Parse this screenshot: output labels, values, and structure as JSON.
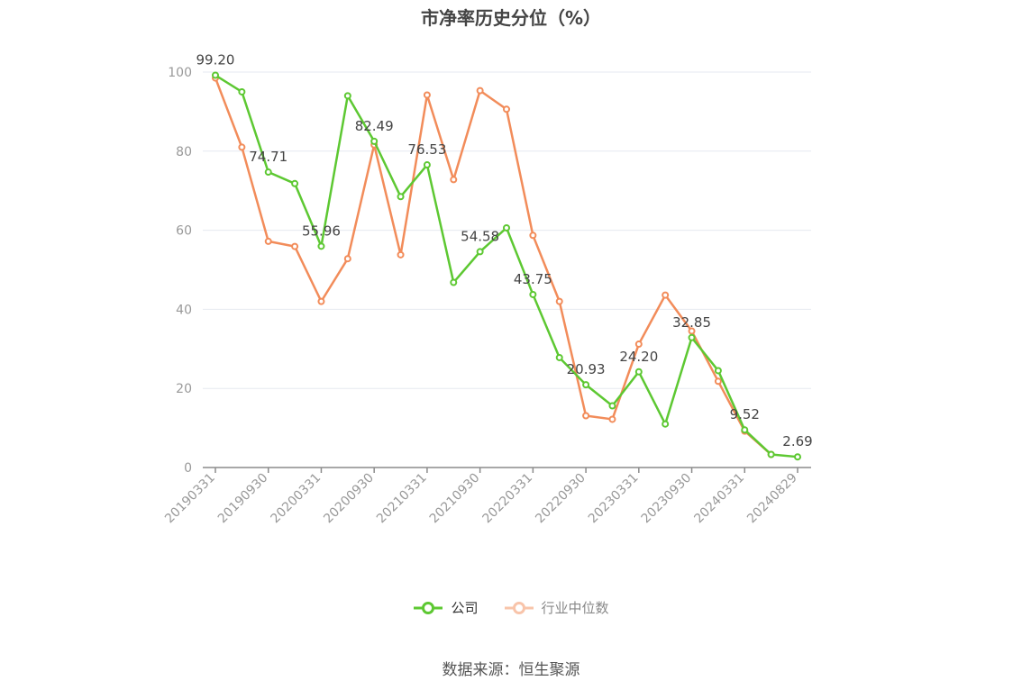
{
  "title": "市净率历史分位（%）",
  "source": "数据来源：恒生聚源",
  "colors": {
    "company": "#5dc832",
    "industry": "#f28c5a",
    "grid": "#e6e9f0",
    "axis": "#8c8c8c",
    "label": "#444444"
  },
  "chart_data": {
    "type": "line",
    "title": "市净率历史分位（%）",
    "xlabel": "",
    "ylabel": "",
    "ylim": [
      0,
      100
    ],
    "yticks": [
      0,
      20,
      40,
      60,
      80,
      100
    ],
    "grid": true,
    "legend_position": "bottom",
    "x": [
      "20190331",
      "20190630",
      "20190930",
      "20191231",
      "20200331",
      "20200630",
      "20200930",
      "20201231",
      "20210331",
      "20210630",
      "20210930",
      "20211231",
      "20220331",
      "20220630",
      "20220930",
      "20221231",
      "20230331",
      "20230630",
      "20230930",
      "20231231",
      "20240331",
      "20240630",
      "20240829"
    ],
    "xtick_labels": [
      "20190331",
      "20190930",
      "20200331",
      "20200930",
      "20210331",
      "20210930",
      "20220331",
      "20220930",
      "20230331",
      "20230930",
      "20240331",
      "20240829"
    ],
    "series": [
      {
        "name": "公司",
        "values": [
          99.2,
          95.0,
          74.71,
          71.8,
          55.96,
          94.0,
          82.49,
          68.5,
          76.53,
          46.8,
          54.58,
          60.6,
          43.75,
          27.8,
          20.93,
          15.6,
          24.2,
          11.0,
          32.85,
          24.5,
          9.52,
          3.3,
          2.69
        ]
      },
      {
        "name": "行业中位数",
        "values": [
          98.5,
          81.0,
          57.2,
          55.9,
          42.0,
          52.8,
          81.6,
          53.8,
          94.2,
          72.8,
          95.3,
          90.6,
          58.7,
          42.0,
          13.1,
          12.2,
          31.2,
          43.6,
          34.5,
          21.8,
          9.2,
          3.3,
          null
        ]
      }
    ],
    "annotations": [
      {
        "index": 0,
        "text": "99.20"
      },
      {
        "index": 2,
        "text": "74.71"
      },
      {
        "index": 4,
        "text": "55.96"
      },
      {
        "index": 6,
        "text": "82.49"
      },
      {
        "index": 8,
        "text": "76.53"
      },
      {
        "index": 10,
        "text": "54.58"
      },
      {
        "index": 12,
        "text": "43.75"
      },
      {
        "index": 14,
        "text": "20.93"
      },
      {
        "index": 16,
        "text": "24.20"
      },
      {
        "index": 18,
        "text": "32.85"
      },
      {
        "index": 20,
        "text": "9.52"
      },
      {
        "index": 22,
        "text": "2.69"
      }
    ]
  },
  "legend": [
    {
      "label": "公司",
      "series": 0
    },
    {
      "label": "行业中位数",
      "series": 1
    }
  ]
}
